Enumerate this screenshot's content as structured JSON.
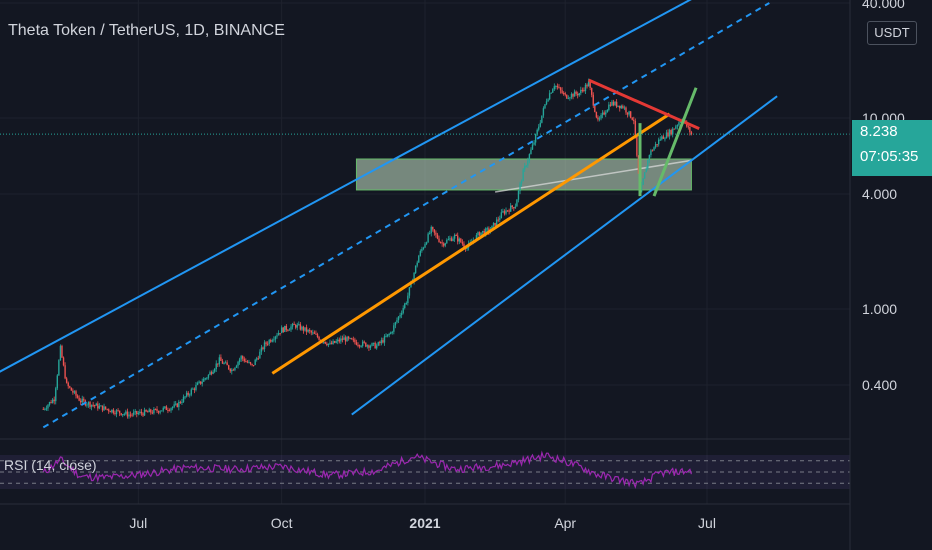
{
  "header": {
    "title": "Theta Token / TetherUS, 1D, BINANCE",
    "currency": "USDT"
  },
  "price_tag": {
    "last_price": "8.238",
    "countdown": "07:05:35"
  },
  "rsi": {
    "label": "RSI (14, close)"
  },
  "colors": {
    "background": "#131722",
    "channel": "#2196f3",
    "orange_trend": "#ff9800",
    "red_trend": "#e53935",
    "green_trend": "#66bb6a",
    "zone_fill": "#c8e6c9",
    "up_candle": "#26a69a",
    "down_candle": "#ef5350",
    "rsi_line": "#9c27b0",
    "price_tag": "#26a69a"
  },
  "chart_data": {
    "type": "candlestick",
    "title": "Theta Token / TetherUS, 1D, BINANCE",
    "y_scale": "log",
    "ylim": [
      0.25,
      40
    ],
    "y_ticks": [
      {
        "value": 40,
        "label": "40.000"
      },
      {
        "value": 10,
        "label": "10.000"
      },
      {
        "value": 4,
        "label": "4.000"
      },
      {
        "value": 1,
        "label": "1.000"
      },
      {
        "value": 0.4,
        "label": "0.400"
      }
    ],
    "x_ticks": [
      "Jul",
      "Oct",
      "2021",
      "Apr",
      "Jul"
    ],
    "x_range": [
      "2020-04-15",
      "2021-08-15"
    ],
    "last_price": 8.238,
    "series": [
      {
        "name": "Theta Token / TetherUS",
        "kind": "close_path",
        "points": [
          [
            "2020-05-01",
            0.3
          ],
          [
            "2020-05-08",
            0.34
          ],
          [
            "2020-05-12",
            0.62
          ],
          [
            "2020-05-16",
            0.4
          ],
          [
            "2020-05-25",
            0.33
          ],
          [
            "2020-06-10",
            0.3
          ],
          [
            "2020-06-25",
            0.28
          ],
          [
            "2020-07-10",
            0.29
          ],
          [
            "2020-07-25",
            0.31
          ],
          [
            "2020-08-05",
            0.38
          ],
          [
            "2020-08-15",
            0.45
          ],
          [
            "2020-08-22",
            0.54
          ],
          [
            "2020-08-30",
            0.48
          ],
          [
            "2020-09-05",
            0.56
          ],
          [
            "2020-09-12",
            0.5
          ],
          [
            "2020-09-20",
            0.65
          ],
          [
            "2020-10-01",
            0.78
          ],
          [
            "2020-10-10",
            0.82
          ],
          [
            "2020-10-20",
            0.75
          ],
          [
            "2020-11-01",
            0.65
          ],
          [
            "2020-11-10",
            0.7
          ],
          [
            "2020-11-20",
            0.66
          ],
          [
            "2020-12-01",
            0.64
          ],
          [
            "2020-12-10",
            0.75
          ],
          [
            "2020-12-20",
            1.1
          ],
          [
            "2020-12-28",
            1.9
          ],
          [
            "2021-01-05",
            2.6
          ],
          [
            "2021-01-12",
            2.2
          ],
          [
            "2021-01-20",
            2.4
          ],
          [
            "2021-01-28",
            2.1
          ],
          [
            "2021-02-05",
            2.5
          ],
          [
            "2021-02-12",
            2.6
          ],
          [
            "2021-02-20",
            3.2
          ],
          [
            "2021-02-28",
            3.5
          ],
          [
            "2021-03-05",
            5.2
          ],
          [
            "2021-03-12",
            7.5
          ],
          [
            "2021-03-20",
            12.5
          ],
          [
            "2021-03-25",
            15.0
          ],
          [
            "2021-04-01",
            13.0
          ],
          [
            "2021-04-10",
            13.5
          ],
          [
            "2021-04-16",
            15.2
          ],
          [
            "2021-04-22",
            9.5
          ],
          [
            "2021-04-30",
            12.0
          ],
          [
            "2021-05-08",
            11.5
          ],
          [
            "2021-05-15",
            9.8
          ],
          [
            "2021-05-19",
            4.0
          ],
          [
            "2021-05-25",
            6.5
          ],
          [
            "2021-06-01",
            7.8
          ],
          [
            "2021-06-08",
            8.5
          ],
          [
            "2021-06-15",
            10.0
          ],
          [
            "2021-06-21",
            8.238
          ]
        ]
      },
      {
        "name": "RSI (14, close)",
        "kind": "oscillator",
        "ylim": [
          0,
          100
        ],
        "guide_levels": [
          70,
          50,
          30
        ],
        "points": [
          [
            "2020-05-01",
            48
          ],
          [
            "2020-05-12",
            72
          ],
          [
            "2020-05-25",
            42
          ],
          [
            "2020-06-10",
            40
          ],
          [
            "2020-07-01",
            45
          ],
          [
            "2020-08-01",
            58
          ],
          [
            "2020-09-01",
            55
          ],
          [
            "2020-10-01",
            60
          ],
          [
            "2020-11-01",
            44
          ],
          [
            "2020-12-01",
            52
          ],
          [
            "2020-12-25",
            78
          ],
          [
            "2021-01-20",
            55
          ],
          [
            "2021-02-20",
            62
          ],
          [
            "2021-03-20",
            80
          ],
          [
            "2021-04-10",
            60
          ],
          [
            "2021-04-22",
            45
          ],
          [
            "2021-05-19",
            28
          ],
          [
            "2021-06-01",
            48
          ],
          [
            "2021-06-21",
            52
          ]
        ]
      }
    ],
    "drawings": [
      {
        "name": "channel-upper",
        "style": "solid",
        "color": "#2196f3",
        "from": [
          "2020-04-01",
          0.46
        ],
        "to": [
          "2021-06-28",
          45
        ]
      },
      {
        "name": "channel-middle",
        "style": "dashed",
        "color": "#2196f3",
        "from": [
          "2020-05-01",
          0.24
        ],
        "to": [
          "2021-08-10",
          40
        ]
      },
      {
        "name": "channel-lower",
        "style": "solid",
        "color": "#2196f3",
        "from": [
          "2020-11-15",
          0.28
        ],
        "to": [
          "2021-08-15",
          13.0
        ]
      },
      {
        "name": "orange-trendline",
        "style": "solid",
        "color": "#ff9800",
        "from": [
          "2020-09-25",
          0.46
        ],
        "to": [
          "2021-06-07",
          10.5
        ]
      },
      {
        "name": "red-trendline",
        "style": "solid",
        "color": "#e53935",
        "from": [
          "2021-04-16",
          15.8
        ],
        "to": [
          "2021-06-26",
          8.8
        ]
      },
      {
        "name": "green-line-a",
        "style": "solid",
        "color": "#66bb6a",
        "from": [
          "2021-05-28",
          3.9
        ],
        "to": [
          "2021-06-24",
          14.4
        ]
      },
      {
        "name": "green-line-b",
        "style": "solid",
        "color": "#66bb6a",
        "from": [
          "2021-05-19",
          3.9
        ],
        "to": [
          "2021-05-19",
          9.4
        ]
      },
      {
        "name": "support-zone",
        "style": "box",
        "color": "#c8e6c9",
        "from": [
          "2020-11-18",
          4.2
        ],
        "to": [
          "2021-06-21",
          6.1
        ]
      }
    ]
  }
}
